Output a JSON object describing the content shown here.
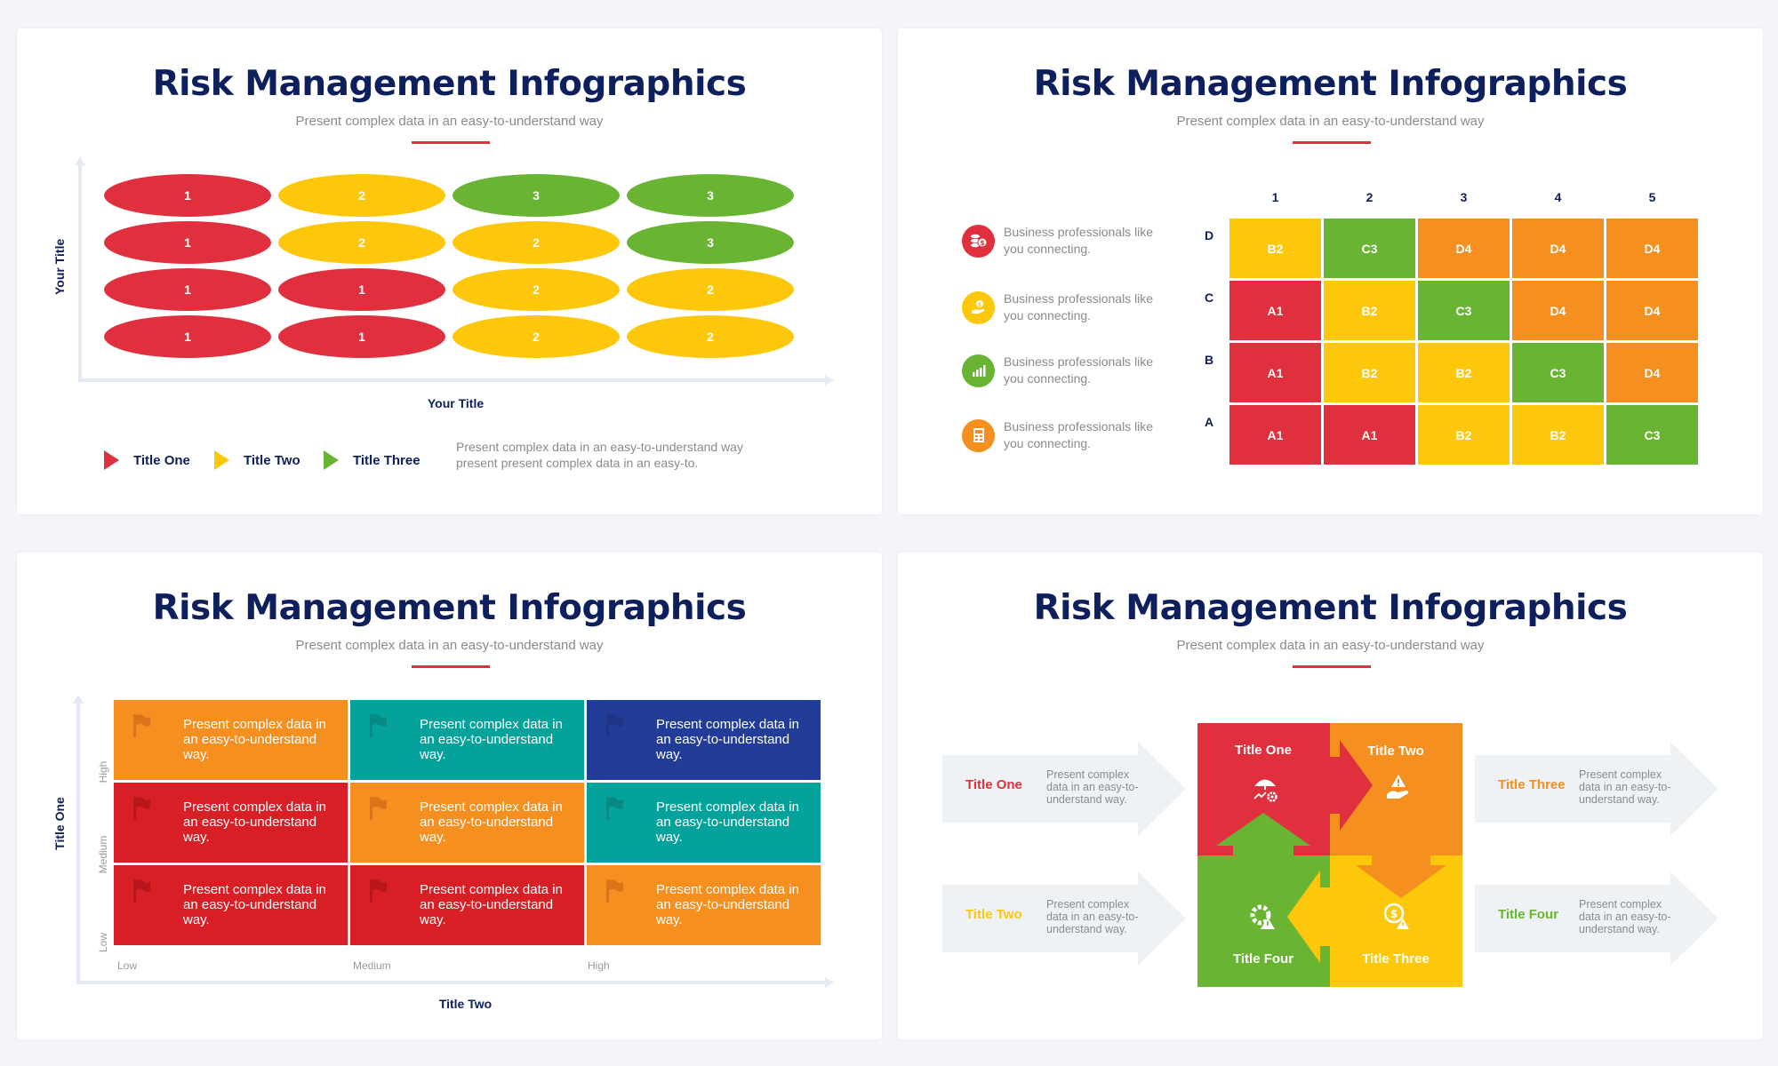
{
  "colors": {
    "navy": "#0d1f5c",
    "red": "#e0303d",
    "yellow": "#fdc70c",
    "green": "#69b533",
    "orange": "#f58f1f",
    "deep_red": "#d91f26",
    "teal": "#04a29a",
    "blue": "#223d97",
    "arrow_gray": "#eff2f5",
    "text_gray": "#8b8b8b"
  },
  "panels": [
    {
      "title": "Risk Management Infographics",
      "subtitle": "Present complex data in an easy-to-understand way",
      "y_axis_title": "Your Title",
      "x_axis_title": "Your Title",
      "legend": [
        {
          "label": "Title One",
          "color": "red"
        },
        {
          "label": "Title Two",
          "color": "yellow"
        },
        {
          "label": "Title Three",
          "color": "green"
        }
      ],
      "legend_description": [
        "Present complex data in an easy-to-understand way",
        "present present complex data in an easy-to."
      ]
    },
    {
      "title": "Risk Management Infographics",
      "subtitle": "Present complex data in an easy-to-understand way",
      "column_labels": [
        "1",
        "2",
        "3",
        "4",
        "5"
      ],
      "row_labels": [
        "D",
        "C",
        "B",
        "A"
      ],
      "legend": [
        {
          "icon": "coins-dollar-icon",
          "color": "red",
          "text": "Business professionals like you connecting."
        },
        {
          "icon": "hand-dollar-icon",
          "color": "yellow",
          "text": "Business professionals like you connecting."
        },
        {
          "icon": "growth-chart-icon",
          "color": "green",
          "text": "Business professionals like you connecting."
        },
        {
          "icon": "calculator-icon",
          "color": "orange",
          "text": "Business professionals like you connecting."
        }
      ]
    },
    {
      "title": "Risk Management Infographics",
      "subtitle": "Present complex data in an easy-to-understand way",
      "y_axis_title": "Title One",
      "x_axis_title": "Title Two",
      "y_ticks": [
        "High",
        "Medium",
        "Low"
      ],
      "x_ticks": [
        "Low",
        "Medium",
        "High"
      ],
      "cells": [
        [
          {
            "color": "orange",
            "text": "Present complex data in an easy-to-understand way."
          },
          {
            "color": "teal",
            "text": "Present complex data in an easy-to-understand way."
          },
          {
            "color": "blue",
            "text": "Present complex data in an easy-to-understand way."
          }
        ],
        [
          {
            "color": "deep_red",
            "text": "Present complex data in an easy-to-understand way."
          },
          {
            "color": "orange",
            "text": "Present complex data in an easy-to-understand way."
          },
          {
            "color": "teal",
            "text": "Present complex data in an easy-to-understand way."
          }
        ],
        [
          {
            "color": "deep_red",
            "text": "Present complex data in an easy-to-understand way."
          },
          {
            "color": "deep_red",
            "text": "Present complex data in an easy-to-understand way."
          },
          {
            "color": "orange",
            "text": "Present complex data in an easy-to-understand way."
          }
        ]
      ]
    },
    {
      "title": "Risk Management Infographics",
      "subtitle": "Present complex data in an easy-to-understand way",
      "side_items": [
        {
          "title": "Title One",
          "color": "red",
          "text": "Present complex data in an easy-to-understand way."
        },
        {
          "title": "Title Two",
          "color": "yellow",
          "text": "Present complex data in an easy-to-understand way."
        },
        {
          "title": "Title Three",
          "color": "orange",
          "text": "Present complex data in an easy-to-understand way."
        },
        {
          "title": "Title Four",
          "color": "green",
          "text": "Present complex data in an easy-to-understand way."
        }
      ],
      "puzzle": [
        {
          "title": "Title One",
          "color": "red",
          "icon": "umbrella-gear-icon"
        },
        {
          "title": "Title Two",
          "color": "orange",
          "icon": "hand-warning-icon"
        },
        {
          "title": "Title Three",
          "color": "yellow",
          "icon": "dollar-warning-icon"
        },
        {
          "title": "Title Four",
          "color": "green",
          "icon": "gear-warning-icon"
        }
      ]
    }
  ],
  "chart_data": [
    {
      "type": "heatmap",
      "title": "Risk Management Infographics",
      "subtitle": "Present complex data in an easy-to-understand way",
      "xlabel": "Your Title",
      "ylabel": "Your Title",
      "rows_top_to_bottom": [
        [
          1,
          2,
          3,
          3
        ],
        [
          1,
          2,
          2,
          3
        ],
        [
          1,
          1,
          2,
          2
        ],
        [
          1,
          1,
          2,
          2
        ]
      ],
      "value_colors": {
        "1": "#e0303d",
        "2": "#fdc70c",
        "3": "#69b533"
      },
      "legend": [
        "Title One",
        "Title Two",
        "Title Three"
      ]
    },
    {
      "type": "heatmap",
      "title": "Risk Management Infographics",
      "x_categories": [
        "1",
        "2",
        "3",
        "4",
        "5"
      ],
      "y_categories": [
        "D",
        "C",
        "B",
        "A"
      ],
      "values": [
        [
          "B2",
          "C3",
          "D4",
          "D4",
          "D4"
        ],
        [
          "A1",
          "B2",
          "C3",
          "D4",
          "D4"
        ],
        [
          "A1",
          "B2",
          "B2",
          "C3",
          "D4"
        ],
        [
          "A1",
          "A1",
          "B2",
          "B2",
          "C3"
        ]
      ],
      "value_colors": {
        "A1": "#e0303d",
        "B2": "#fdc70c",
        "C3": "#69b533",
        "D4": "#f58f1f"
      }
    },
    {
      "type": "heatmap",
      "title": "Risk Management Infographics",
      "xlabel": "Title Two",
      "ylabel": "Title One",
      "x_categories": [
        "Low",
        "Medium",
        "High"
      ],
      "y_categories": [
        "High",
        "Medium",
        "Low"
      ],
      "colors": [
        [
          "#f58f1f",
          "#04a29a",
          "#223d97"
        ],
        [
          "#d91f26",
          "#f58f1f",
          "#04a29a"
        ],
        [
          "#d91f26",
          "#d91f26",
          "#f58f1f"
        ]
      ]
    }
  ]
}
